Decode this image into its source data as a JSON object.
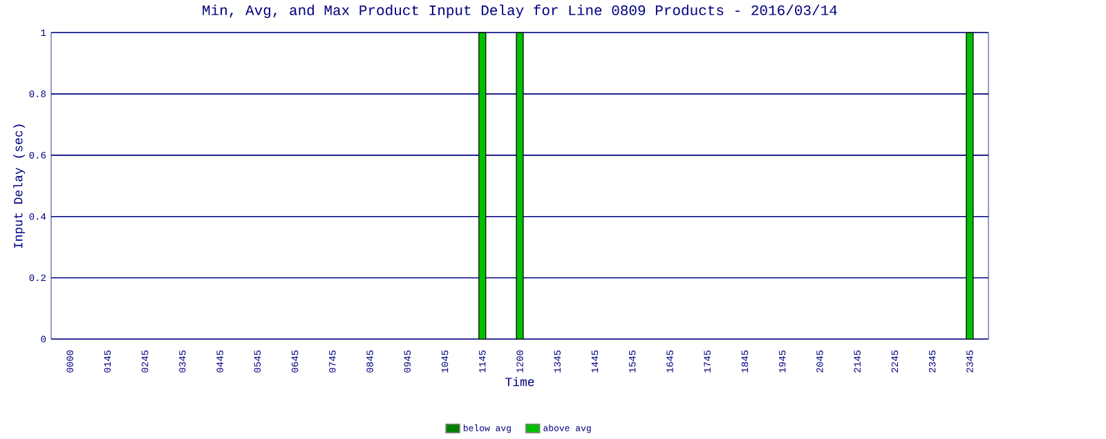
{
  "chart_data": {
    "type": "bar",
    "title": "Min, Avg, and Max Product Input Delay for Line 0809 Products - 2016/03/14",
    "xlabel": "Time",
    "ylabel": "Input Delay (sec)",
    "categories": [
      "0000",
      "0145",
      "0245",
      "0345",
      "0445",
      "0545",
      "0645",
      "0745",
      "0845",
      "0945",
      "1045",
      "1145",
      "1200",
      "1345",
      "1445",
      "1545",
      "1645",
      "1745",
      "1845",
      "1945",
      "2045",
      "2145",
      "2245",
      "2345",
      "2345"
    ],
    "series": [
      {
        "name": "below avg",
        "color": "#008000",
        "values": [
          null,
          null,
          null,
          null,
          null,
          null,
          null,
          null,
          null,
          null,
          null,
          null,
          null,
          null,
          null,
          null,
          null,
          null,
          null,
          null,
          null,
          null,
          null,
          null,
          null
        ]
      },
      {
        "name": "above avg",
        "color": "#00c000",
        "values": [
          null,
          null,
          null,
          null,
          null,
          null,
          null,
          null,
          null,
          null,
          null,
          1,
          1,
          null,
          null,
          null,
          null,
          null,
          null,
          null,
          null,
          null,
          null,
          null,
          1
        ]
      }
    ],
    "ylim": [
      0,
      1
    ],
    "yticks": [
      0,
      0.2,
      0.4,
      0.6,
      0.8,
      1
    ],
    "grid": "y",
    "legend": "bottom"
  }
}
